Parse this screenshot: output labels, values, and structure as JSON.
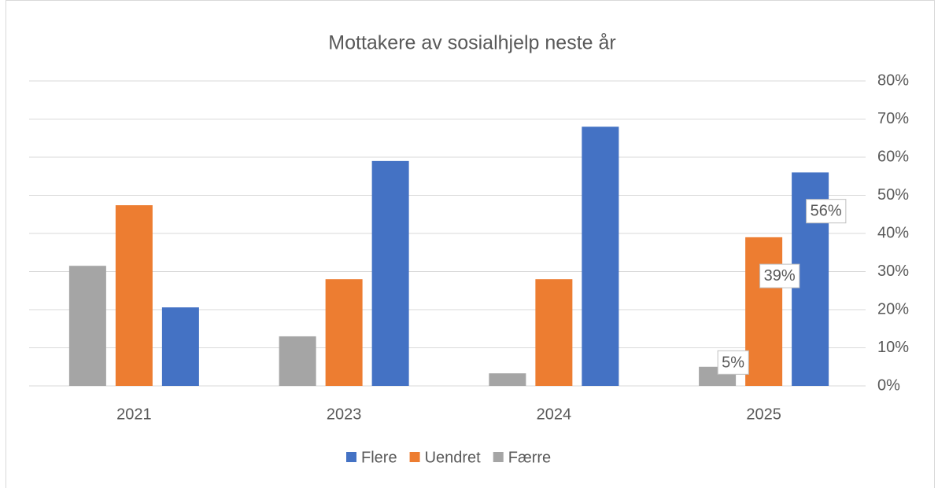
{
  "chart_data": {
    "type": "bar",
    "title": "Mottakere av sosialhjelp neste år",
    "categories": [
      "2021",
      "2023",
      "2024",
      "2025"
    ],
    "series": [
      {
        "name": "Færre",
        "color": "#a5a5a5",
        "values": [
          31.5,
          13,
          3.3,
          5
        ],
        "value_labels": [
          null,
          null,
          null,
          "5%"
        ]
      },
      {
        "name": "Uendret",
        "color": "#ed7d31",
        "values": [
          47.4,
          28,
          28,
          39
        ],
        "value_labels": [
          null,
          null,
          null,
          "39%"
        ]
      },
      {
        "name": "Flere",
        "color": "#4472c4",
        "values": [
          20.6,
          59,
          68,
          56
        ],
        "value_labels": [
          null,
          null,
          null,
          "56%"
        ]
      }
    ],
    "legend_order": [
      "Flere",
      "Uendret",
      "Færre"
    ],
    "ylim": [
      0,
      80
    ],
    "yticks": [
      {
        "value": 0,
        "label": "0%"
      },
      {
        "value": 10,
        "label": "10%"
      },
      {
        "value": 20,
        "label": "20%"
      },
      {
        "value": 30,
        "label": "30%"
      },
      {
        "value": 40,
        "label": "40%"
      },
      {
        "value": 50,
        "label": "50%"
      },
      {
        "value": 60,
        "label": "60%"
      },
      {
        "value": 70,
        "label": "70%"
      },
      {
        "value": 80,
        "label": "80%"
      }
    ],
    "grid": true,
    "legend": "bottom",
    "y_axis_side": "right"
  }
}
